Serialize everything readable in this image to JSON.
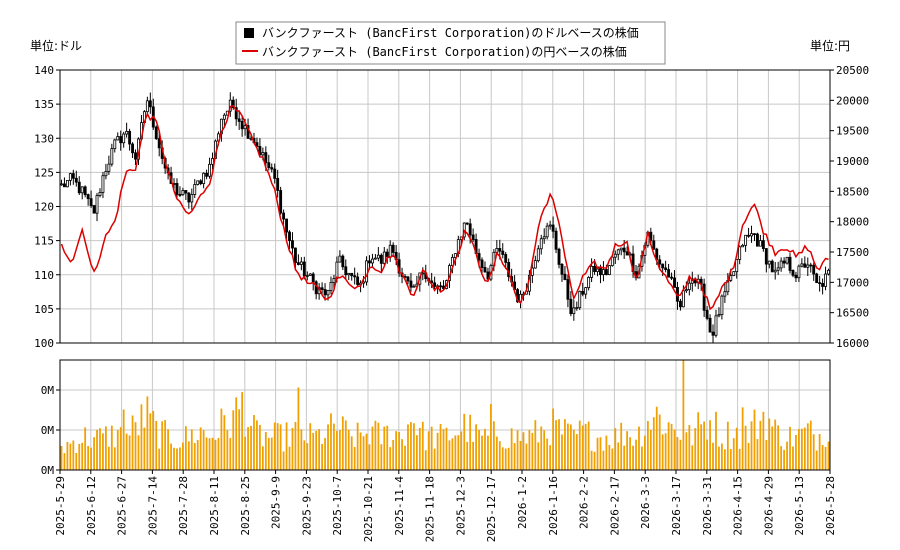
{
  "chart_data": {
    "type": "candlestick+line+bar",
    "legend": {
      "placement": "top-center",
      "entries": [
        {
          "name": "バンクファースト (BancFirst Corporation)のドルベースの株価",
          "color": "#000000"
        },
        {
          "name": "バンクファースト (BancFirst Corporation)の円ベースの株価",
          "color": "#dd0000"
        }
      ]
    },
    "left_unit": "単位:ドル",
    "right_unit": "単位:円",
    "y_left": {
      "min": 100,
      "max": 140,
      "ticks": [
        "100",
        "105",
        "110",
        "115",
        "120",
        "125",
        "130",
        "135",
        "140"
      ]
    },
    "y_right": {
      "min": 16000,
      "max": 20500,
      "ticks": [
        "16000",
        "16500",
        "17000",
        "17500",
        "18000",
        "18500",
        "19000",
        "19500",
        "20000",
        "20500"
      ]
    },
    "volume_ticks": [
      "0M",
      "0M",
      "0M"
    ],
    "x_ticks": [
      "2025-5-29",
      "2025-6-12",
      "2025-6-27",
      "2025-7-14",
      "2025-7-28",
      "2025-8-11",
      "2025-8-25",
      "2025-9-9",
      "2025-9-23",
      "2025-10-7",
      "2025-10-21",
      "2025-11-4",
      "2025-11-18",
      "2025-12-3",
      "2025-12-17",
      "2026-1-2",
      "2026-1-16",
      "2026-2-2",
      "2026-2-17",
      "2026-3-3",
      "2026-3-17",
      "2026-3-31",
      "2026-4-15",
      "2026-4-29",
      "2026-5-13",
      "2026-5-28"
    ],
    "usd_key_closes": [
      123,
      124,
      122,
      119,
      125,
      129,
      131,
      127,
      136,
      130,
      124,
      122,
      121,
      124,
      126,
      133,
      135,
      132,
      130,
      127,
      124,
      117,
      112,
      110,
      108,
      107,
      112,
      110,
      108,
      113,
      112,
      114,
      110,
      107,
      111,
      108,
      108,
      114,
      118,
      113,
      110,
      114,
      110,
      106,
      110,
      116,
      117,
      110,
      104,
      108,
      111,
      110,
      113,
      114,
      110,
      116,
      112,
      110,
      105,
      110,
      108,
      101,
      106,
      110,
      115,
      116,
      113,
      110,
      112,
      110,
      112,
      108,
      110
    ],
    "jpy_key_closes": [
      17600,
      17350,
      17900,
      17100,
      17700,
      18000,
      18800,
      18900,
      19800,
      19600,
      18800,
      18300,
      18100,
      18400,
      18700,
      19500,
      19900,
      19700,
      19300,
      19000,
      18500,
      17800,
      17200,
      17000,
      16900,
      16700,
      17100,
      17000,
      16900,
      17300,
      17200,
      17500,
      17100,
      16800,
      17200,
      16900,
      16900,
      17400,
      17900,
      17400,
      16950,
      17500,
      17150,
      16600,
      17100,
      18100,
      18500,
      17700,
      16700,
      17100,
      17300,
      17200,
      17600,
      17700,
      17000,
      17800,
      17300,
      17000,
      16700,
      17100,
      17000,
      16500,
      16900,
      17200,
      18000,
      18300,
      17800,
      17500,
      17600,
      17400,
      17600,
      17200,
      17400
    ],
    "volume_key_levels": [
      0.2,
      0.25,
      0.3,
      0.28,
      0.3,
      0.32,
      0.3,
      0.4,
      0.5,
      0.35,
      0.3,
      0.28,
      0.3,
      0.35,
      0.3,
      0.4,
      0.45,
      0.6,
      0.35,
      0.3,
      0.3,
      0.3,
      0.35,
      0.3,
      0.3,
      0.35,
      0.4,
      0.3,
      0.3,
      0.35,
      0.3,
      0.35,
      0.3,
      0.5,
      0.3,
      0.3,
      0.3,
      0.35,
      0.4,
      0.3,
      0.3,
      0.35,
      0.3,
      0.3,
      0.3,
      0.35,
      0.4,
      0.35,
      0.3,
      0.35,
      0.3,
      0.3,
      0.3,
      0.35,
      0.3,
      0.45,
      0.5,
      0.4,
      0.35,
      0.3,
      0.4,
      0.45,
      0.3,
      0.35,
      0.3,
      0.4,
      0.5,
      0.35,
      0.3,
      0.3,
      0.35,
      0.3,
      0.4
    ],
    "volume_spikes": [
      {
        "date": "2025-6-27",
        "level": 0.55
      },
      {
        "date": "2025-9-19",
        "level": 0.75
      },
      {
        "date": "2025-12-19",
        "level": 0.6
      },
      {
        "date": "2026-3-20",
        "level": 1.0
      },
      {
        "date": "2026-4-17",
        "level": 0.57
      }
    ],
    "colors": {
      "usd": "#000000",
      "jpy": "#dd0000",
      "volume": "#f0a000",
      "grid": "#c8c8c8"
    }
  }
}
